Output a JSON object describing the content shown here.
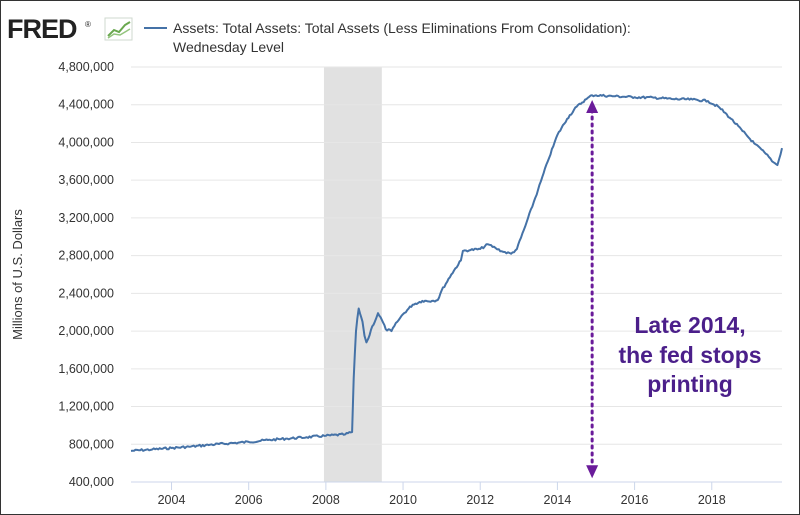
{
  "logo": {
    "text": "FRED",
    "mark": "®"
  },
  "legend": {
    "line1": "Assets: Total Assets: Total Assets (Less Eliminations From Consolidation):",
    "line2": "Wednesday Level"
  },
  "annotation": {
    "lines": [
      "Late 2014,",
      "the fed stops",
      "printing"
    ]
  },
  "colors": {
    "series": "#4572a7",
    "recession": "#e1e1e1",
    "annotation": "#6a1b9a",
    "annotation_text": "#4b1f8a",
    "grid": "#e6e6e6",
    "frame": "#333333"
  },
  "chart_data": {
    "type": "line",
    "xlabel": "",
    "ylabel": "Millions of U.S. Dollars",
    "xlim": [
      2002.95,
      2019.82
    ],
    "ylim": [
      400000,
      4800000
    ],
    "x_ticks": [
      2004,
      2006,
      2008,
      2010,
      2012,
      2014,
      2016,
      2018
    ],
    "x_tick_labels": [
      "2004",
      "2006",
      "2008",
      "2010",
      "2012",
      "2014",
      "2016",
      "2018"
    ],
    "y_ticks": [
      400000,
      800000,
      1200000,
      1600000,
      2000000,
      2400000,
      2800000,
      3200000,
      3600000,
      4000000,
      4400000,
      4800000
    ],
    "y_tick_labels": [
      "400,000",
      "800,000",
      "1,200,000",
      "1,600,000",
      "2,000,000",
      "2,400,000",
      "2,800,000",
      "3,200,000",
      "3,600,000",
      "4,000,000",
      "4,400,000",
      "4,800,000"
    ],
    "grid": "horizontal",
    "recession_shading": [
      2007.95,
      2009.45
    ],
    "annotation_arrow": {
      "x": 2014.9,
      "y_top": 4450000,
      "y_bottom": 440000
    },
    "series": [
      {
        "name": "Assets: Total Assets: Total Assets (Less Eliminations From Consolidation): Wednesday Level",
        "points": [
          [
            2002.95,
            730000
          ],
          [
            2003.5,
            745000
          ],
          [
            2004.0,
            760000
          ],
          [
            2004.5,
            775000
          ],
          [
            2005.0,
            795000
          ],
          [
            2005.5,
            810000
          ],
          [
            2006.0,
            825000
          ],
          [
            2006.5,
            845000
          ],
          [
            2007.0,
            860000
          ],
          [
            2007.5,
            875000
          ],
          [
            2008.0,
            890000
          ],
          [
            2008.5,
            905000
          ],
          [
            2008.68,
            930000
          ],
          [
            2008.72,
            1500000
          ],
          [
            2008.78,
            2000000
          ],
          [
            2008.85,
            2240000
          ],
          [
            2008.95,
            2100000
          ],
          [
            2009.0,
            1950000
          ],
          [
            2009.05,
            1880000
          ],
          [
            2009.1,
            1920000
          ],
          [
            2009.2,
            2050000
          ],
          [
            2009.3,
            2130000
          ],
          [
            2009.35,
            2190000
          ],
          [
            2009.45,
            2120000
          ],
          [
            2009.55,
            2020000
          ],
          [
            2009.7,
            2000000
          ],
          [
            2009.85,
            2100000
          ],
          [
            2010.0,
            2180000
          ],
          [
            2010.25,
            2280000
          ],
          [
            2010.5,
            2320000
          ],
          [
            2010.75,
            2320000
          ],
          [
            2010.9,
            2330000
          ],
          [
            2011.0,
            2430000
          ],
          [
            2011.25,
            2600000
          ],
          [
            2011.5,
            2750000
          ],
          [
            2011.55,
            2850000
          ],
          [
            2011.75,
            2860000
          ],
          [
            2012.0,
            2870000
          ],
          [
            2012.2,
            2920000
          ],
          [
            2012.4,
            2880000
          ],
          [
            2012.6,
            2840000
          ],
          [
            2012.8,
            2820000
          ],
          [
            2012.95,
            2870000
          ],
          [
            2013.2,
            3150000
          ],
          [
            2013.5,
            3500000
          ],
          [
            2013.75,
            3800000
          ],
          [
            2014.0,
            4080000
          ],
          [
            2014.25,
            4250000
          ],
          [
            2014.5,
            4380000
          ],
          [
            2014.75,
            4460000
          ],
          [
            2014.9,
            4500000
          ],
          [
            2015.0,
            4500000
          ],
          [
            2015.5,
            4490000
          ],
          [
            2016.0,
            4480000
          ],
          [
            2016.5,
            4475000
          ],
          [
            2017.0,
            4460000
          ],
          [
            2017.5,
            4455000
          ],
          [
            2017.9,
            4440000
          ],
          [
            2018.2,
            4370000
          ],
          [
            2018.5,
            4250000
          ],
          [
            2018.8,
            4120000
          ],
          [
            2019.1,
            3990000
          ],
          [
            2019.4,
            3880000
          ],
          [
            2019.6,
            3790000
          ],
          [
            2019.7,
            3760000
          ],
          [
            2019.75,
            3830000
          ],
          [
            2019.82,
            3940000
          ]
        ]
      }
    ]
  }
}
